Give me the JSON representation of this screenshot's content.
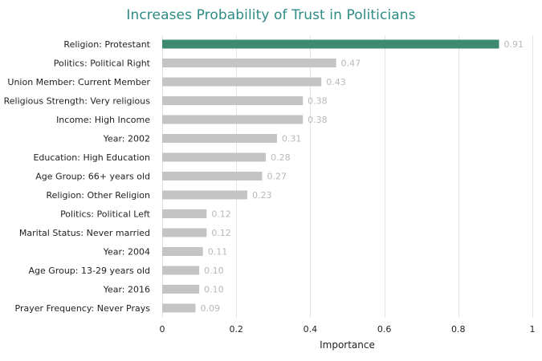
{
  "chart_data": {
    "type": "bar",
    "orientation": "horizontal",
    "title": "Increases Probability of Trust in Politicians",
    "xlabel": "Importance",
    "ylabel": "",
    "xlim": [
      0,
      1
    ],
    "xticks": [
      0,
      0.2,
      0.4,
      0.6,
      0.8,
      1
    ],
    "xtick_labels": [
      "0",
      "0.2",
      "0.4",
      "0.6",
      "0.8",
      "1"
    ],
    "grid": true,
    "legend": false,
    "highlight_color": "#3e8a6e",
    "bar_color": "#c4c4c4",
    "categories": [
      "Religion: Protestant",
      "Politics: Political Right",
      "Union Member: Current Member",
      "Religious Strength: Very religious",
      "Income: High Income",
      "Year: 2002",
      "Education: High Education",
      "Age Group: 66+ years old",
      "Religion: Other Religion",
      "Politics: Political Left",
      "Marital Status: Never married",
      "Year: 2004",
      "Age Group: 13-29 years old",
      "Year: 2016",
      "Prayer Frequency: Never Prays"
    ],
    "values": [
      0.91,
      0.47,
      0.43,
      0.38,
      0.38,
      0.31,
      0.28,
      0.27,
      0.23,
      0.12,
      0.12,
      0.11,
      0.1,
      0.1,
      0.09
    ],
    "value_labels": [
      "0.91",
      "0.47",
      "0.43",
      "0.38",
      "0.38",
      "0.31",
      "0.28",
      "0.27",
      "0.23",
      "0.12",
      "0.12",
      "0.11",
      "0.10",
      "0.10",
      "0.09"
    ]
  }
}
